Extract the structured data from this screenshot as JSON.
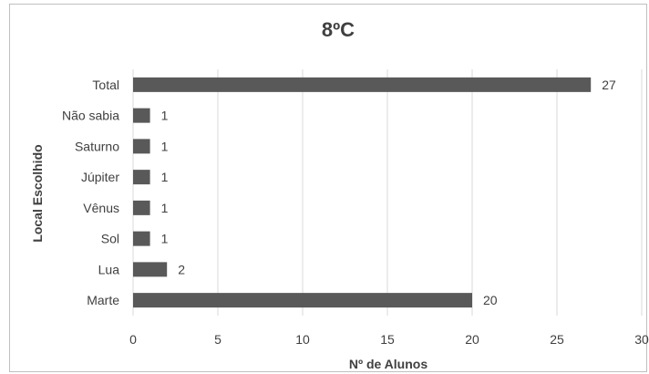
{
  "chart_data": {
    "type": "bar",
    "orientation": "horizontal",
    "title": "8ºC",
    "xlabel": "Nº de Alunos",
    "ylabel": "Local Escolhido",
    "categories": [
      "Total",
      "Não sabia",
      "Saturno",
      "Júpiter",
      "Vênus",
      "Sol",
      "Lua",
      "Marte"
    ],
    "values": [
      27,
      1,
      1,
      1,
      1,
      1,
      2,
      20
    ],
    "xlim": [
      0,
      30
    ],
    "xticks": [
      0,
      5,
      10,
      15,
      20,
      25,
      30
    ],
    "grid": "vertical",
    "legend": "none",
    "bar_color": "#595959",
    "data_labels": true
  }
}
